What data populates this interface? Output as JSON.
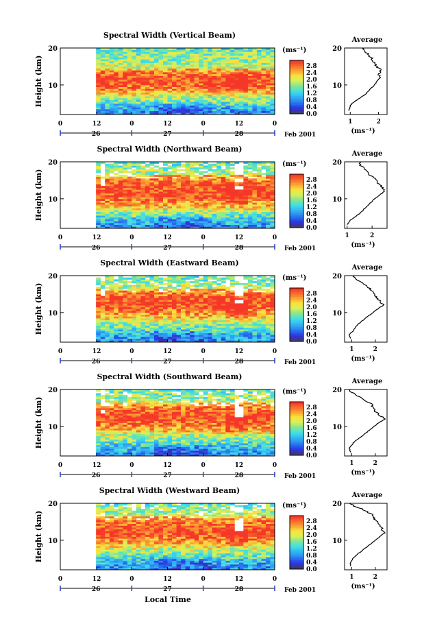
{
  "figure": {
    "date_label": "Feb 2001",
    "xaxis_title": "Local Time",
    "ylabel": "Height (km)",
    "colorbar_unit": "(ms⁻¹)",
    "colorbar_ticks": [
      "2.8",
      "2.4",
      "2.0",
      "1.6",
      "1.2",
      "0.8",
      "0.4",
      "0.0"
    ],
    "hour_ticks": [
      "0",
      "12",
      "0",
      "12",
      "0",
      "12",
      "0"
    ],
    "day_ticks": [
      "26",
      "27",
      "28"
    ],
    "avg_title": "Average",
    "avg_xlabel": "(ms⁻¹)"
  },
  "chart_data": [
    {
      "type": "heatmap",
      "title": "Spectral Width (Vertical Beam)",
      "xlabel": "",
      "ylabel": "Height (km)",
      "x_hour_ticks": [
        "0",
        "12",
        "0",
        "12",
        "0",
        "12",
        "0"
      ],
      "x_day_ticks": [
        "26",
        "27",
        "28"
      ],
      "xlim_hours": [
        0,
        72
      ],
      "data_start_hour": 12,
      "ylim_km": [
        2,
        20
      ],
      "yticks": [
        10,
        20
      ],
      "colorbar": {
        "unit": "ms⁻¹",
        "range": [
          0.0,
          3.0
        ],
        "ticks": [
          0.0,
          0.4,
          0.8,
          1.2,
          1.6,
          2.0,
          2.4,
          2.8
        ]
      },
      "high_width_band_km": [
        8,
        14
      ],
      "average_profile": {
        "xlim": [
          0.8,
          2.3
        ],
        "xticks": [
          "1",
          "2"
        ],
        "ylim": [
          2,
          20
        ],
        "yticks": [
          10,
          20
        ],
        "height_km": [
          3,
          4,
          5,
          6,
          7,
          8,
          9,
          10,
          11,
          12,
          13,
          14,
          15,
          16,
          17,
          18,
          19,
          20
        ],
        "width_ms": [
          0.95,
          0.98,
          1.05,
          1.25,
          1.45,
          1.6,
          1.72,
          1.85,
          1.95,
          2.05,
          2.0,
          2.08,
          1.95,
          1.85,
          1.75,
          1.7,
          1.55,
          1.45
        ]
      }
    },
    {
      "type": "heatmap",
      "title": "Spectral Width (Northward Beam)",
      "xlabel": "",
      "ylabel": "Height (km)",
      "x_hour_ticks": [
        "0",
        "12",
        "0",
        "12",
        "0",
        "12",
        "0"
      ],
      "x_day_ticks": [
        "26",
        "27",
        "28"
      ],
      "xlim_hours": [
        0,
        72
      ],
      "data_start_hour": 12,
      "ylim_km": [
        2,
        20
      ],
      "yticks": [
        10,
        20
      ],
      "colorbar": {
        "unit": "ms⁻¹",
        "range": [
          0.0,
          3.0
        ],
        "ticks": [
          0.0,
          0.4,
          0.8,
          1.2,
          1.6,
          2.0,
          2.4,
          2.8
        ]
      },
      "high_width_band_km": [
        8,
        16
      ],
      "average_profile": {
        "xlim": [
          0.9,
          2.6
        ],
        "xticks": [
          "1",
          "2"
        ],
        "ylim": [
          2,
          20
        ],
        "yticks": [
          10,
          20
        ],
        "height_km": [
          3,
          4,
          5,
          6,
          7,
          8,
          9,
          10,
          11,
          12,
          13,
          14,
          15,
          16,
          17,
          18,
          19,
          20
        ],
        "width_ms": [
          1.0,
          1.1,
          1.3,
          1.5,
          1.65,
          1.8,
          1.95,
          2.1,
          2.3,
          2.5,
          2.4,
          2.3,
          2.15,
          2.0,
          1.85,
          1.7,
          1.55,
          1.5
        ]
      }
    },
    {
      "type": "heatmap",
      "title": "Spectral Width (Eastward Beam)",
      "xlabel": "",
      "ylabel": "Height (km)",
      "x_hour_ticks": [
        "0",
        "12",
        "0",
        "12",
        "0",
        "12",
        "0"
      ],
      "x_day_ticks": [
        "26",
        "27",
        "28"
      ],
      "xlim_hours": [
        0,
        72
      ],
      "data_start_hour": 12,
      "ylim_km": [
        2,
        20
      ],
      "yticks": [
        10,
        20
      ],
      "colorbar": {
        "unit": "ms⁻¹",
        "range": [
          0.0,
          3.0
        ],
        "ticks": [
          0.0,
          0.4,
          0.8,
          1.2,
          1.6,
          2.0,
          2.4,
          2.8
        ]
      },
      "high_width_band_km": [
        9,
        16
      ],
      "average_profile": {
        "xlim": [
          0.7,
          2.5
        ],
        "xticks": [
          "1",
          "2"
        ],
        "ylim": [
          2,
          20
        ],
        "yticks": [
          10,
          20
        ],
        "height_km": [
          3,
          4,
          5,
          6,
          7,
          8,
          9,
          10,
          11,
          12,
          13,
          14,
          15,
          16,
          17,
          18,
          19,
          20
        ],
        "width_ms": [
          0.95,
          0.9,
          1.05,
          1.15,
          1.3,
          1.5,
          1.7,
          1.9,
          2.1,
          2.35,
          2.2,
          2.05,
          1.95,
          1.85,
          1.7,
          1.45,
          1.2,
          1.05
        ]
      }
    },
    {
      "type": "heatmap",
      "title": "Spectral Width (Southward Beam)",
      "xlabel": "",
      "ylabel": "Height (km)",
      "x_hour_ticks": [
        "0",
        "12",
        "0",
        "12",
        "0",
        "12",
        "0"
      ],
      "x_day_ticks": [
        "26",
        "27",
        "28"
      ],
      "xlim_hours": [
        0,
        72
      ],
      "data_start_hour": 12,
      "ylim_km": [
        2,
        20
      ],
      "yticks": [
        10,
        20
      ],
      "colorbar": {
        "unit": "ms⁻¹",
        "range": [
          0.0,
          3.0
        ],
        "ticks": [
          0.0,
          0.4,
          0.8,
          1.2,
          1.6,
          2.0,
          2.4,
          2.8
        ]
      },
      "high_width_band_km": [
        9,
        16
      ],
      "average_profile": {
        "xlim": [
          0.7,
          2.5
        ],
        "xticks": [
          "1",
          "2"
        ],
        "ylim": [
          2,
          20
        ],
        "yticks": [
          10,
          20
        ],
        "height_km": [
          3,
          4,
          5,
          6,
          7,
          8,
          9,
          10,
          11,
          12,
          13,
          14,
          15,
          16,
          17,
          18,
          19,
          20
        ],
        "width_ms": [
          0.95,
          0.9,
          1.0,
          1.15,
          1.35,
          1.55,
          1.75,
          1.95,
          2.15,
          2.4,
          2.2,
          2.0,
          1.9,
          1.85,
          1.6,
          1.35,
          1.05,
          0.9
        ]
      }
    },
    {
      "type": "heatmap",
      "title": "Spectral Width (Westward Beam)",
      "xlabel": "Local Time",
      "ylabel": "Height (km)",
      "x_hour_ticks": [
        "0",
        "12",
        "0",
        "12",
        "0",
        "12",
        "0"
      ],
      "x_day_ticks": [
        "26",
        "27",
        "28"
      ],
      "xlim_hours": [
        0,
        72
      ],
      "data_start_hour": 12,
      "ylim_km": [
        2,
        20
      ],
      "yticks": [
        10,
        20
      ],
      "colorbar": {
        "unit": "ms⁻¹",
        "range": [
          0.0,
          3.0
        ],
        "ticks": [
          0.0,
          0.4,
          0.8,
          1.2,
          1.6,
          2.0,
          2.4,
          2.8
        ]
      },
      "high_width_band_km": [
        9,
        16
      ],
      "average_profile": {
        "xlim": [
          0.7,
          2.5
        ],
        "xticks": [
          "1",
          "2"
        ],
        "ylim": [
          2,
          20
        ],
        "yticks": [
          10,
          20
        ],
        "height_km": [
          3,
          4,
          5,
          6,
          7,
          8,
          9,
          10,
          11,
          12,
          13,
          14,
          15,
          16,
          17,
          18,
          19,
          20
        ],
        "width_ms": [
          0.95,
          0.95,
          1.05,
          1.2,
          1.4,
          1.6,
          1.8,
          2.0,
          2.2,
          2.4,
          2.3,
          2.15,
          2.05,
          1.95,
          1.85,
          1.6,
          1.2,
          0.9
        ]
      }
    }
  ]
}
